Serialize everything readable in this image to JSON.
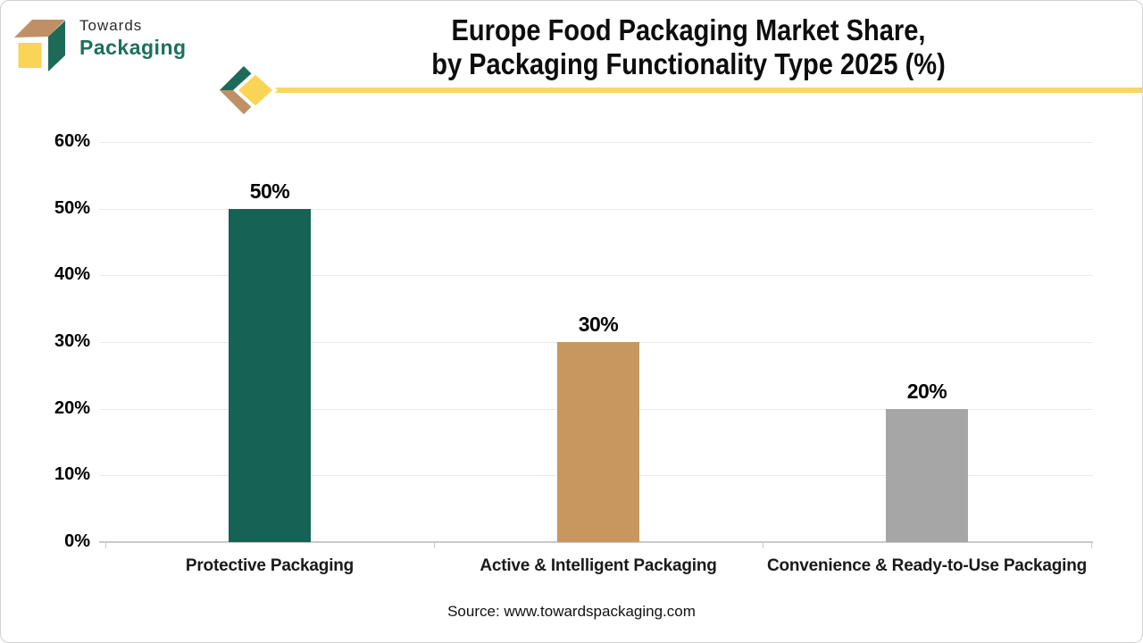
{
  "brand": {
    "wordmark_top": "Towards",
    "wordmark_bottom": "Packaging",
    "colors": {
      "cube_top": "#bf9066",
      "cube_side": "#1c6a57",
      "cube_front": "#f9d455",
      "wordmark_bottom_color": "#1e6f5b",
      "divider_yellow": "#f7d666"
    }
  },
  "header": {
    "title_line1": "Europe Food Packaging Market Share,",
    "title_line2": "by Packaging Functionality Type 2025 (%)"
  },
  "footer": {
    "source_text": "Source: www.towardspackaging.com"
  },
  "chart_data": {
    "type": "bar",
    "title": "Europe Food Packaging Market Share, by Packaging Functionality Type 2025 (%)",
    "categories": [
      "Protective Packaging",
      "Active & Intelligent Packaging",
      "Convenience & Ready-to-Use Packaging"
    ],
    "values": [
      50,
      30,
      20
    ],
    "value_labels": [
      "50%",
      "30%",
      "20%"
    ],
    "bar_colors": [
      "#166356",
      "#c89760",
      "#a6a6a6"
    ],
    "xlabel": "",
    "ylabel": "",
    "ylim": [
      0,
      60
    ],
    "yticks": [
      0,
      10,
      20,
      30,
      40,
      50,
      60
    ],
    "ytick_labels": [
      "0%",
      "10%",
      "20%",
      "30%",
      "40%",
      "50%",
      "60%"
    ],
    "grid": true,
    "legend": "none",
    "grid_color": "#eaeaea",
    "axis_color": "#c9c9c9"
  }
}
